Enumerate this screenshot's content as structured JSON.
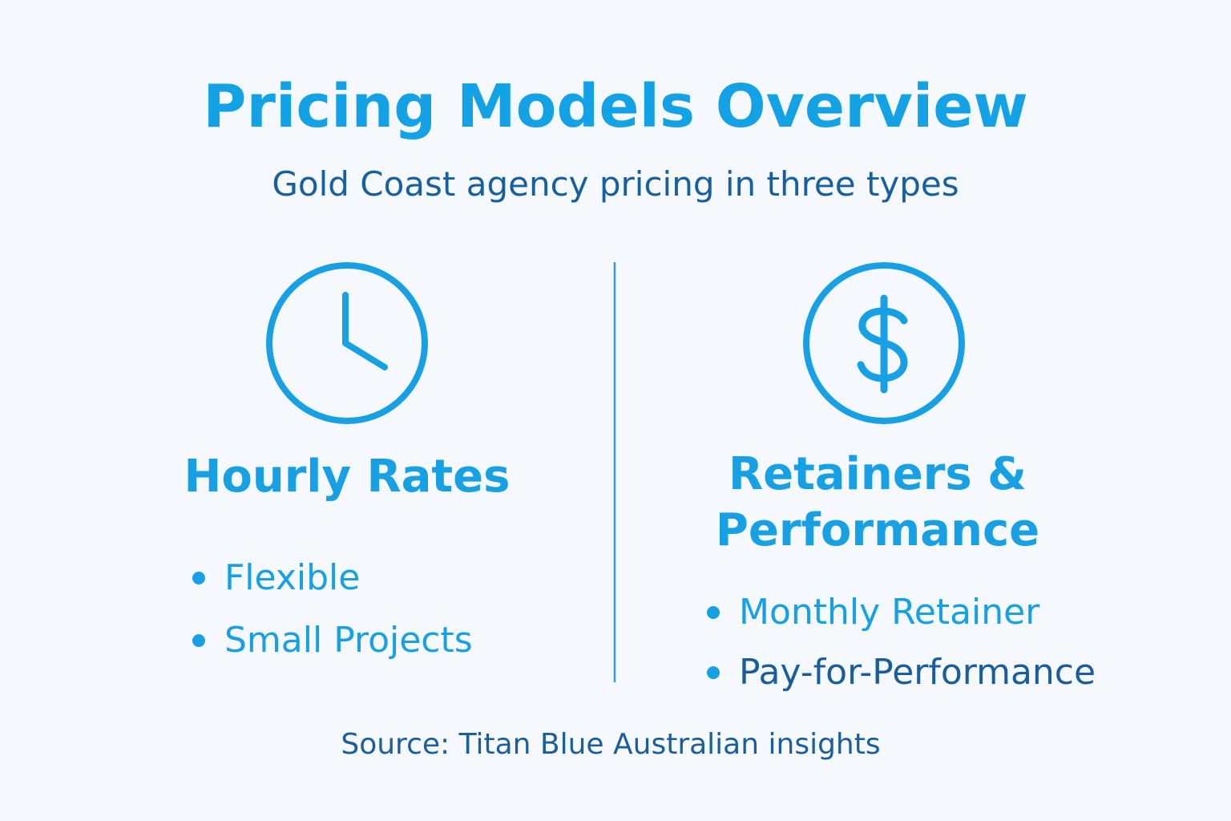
{
  "title": "Pricing Models Overview",
  "subtitle": "Gold Coast agency pricing in three types",
  "columns": [
    {
      "heading": "Hourly Rates",
      "items": [
        "Flexible",
        "Small Projects"
      ]
    },
    {
      "heading": "Retainers & Performance",
      "items": [
        "Monthly Retainer",
        "Pay-for-Performance"
      ]
    }
  ],
  "source": "Source: Titan Blue Australian insights"
}
